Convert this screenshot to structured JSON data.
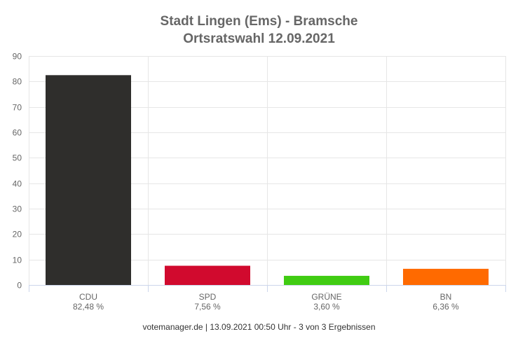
{
  "chart_data": {
    "type": "bar",
    "title": [
      "Stadt Lingen (Ems) - Bramsche",
      "Ortsratswahl 12.09.2021"
    ],
    "categories": [
      "CDU",
      "SPD",
      "GRÜNE",
      "BN"
    ],
    "values": [
      82.48,
      7.56,
      3.6,
      6.36
    ],
    "value_labels": [
      "82,48 %",
      "7,56 %",
      "3,60 %",
      "6,36 %"
    ],
    "colors": [
      "#2f2e2c",
      "#d10a2e",
      "#40cc12",
      "#ff6a00"
    ],
    "ylim": [
      0,
      90
    ],
    "yticks": [
      0,
      10,
      20,
      30,
      40,
      50,
      60,
      70,
      80,
      90
    ],
    "grid": true,
    "legend": "none",
    "footer": "votemanager.de | 13.09.2021 00:50 Uhr - 3 von 3 Ergebnissen"
  }
}
